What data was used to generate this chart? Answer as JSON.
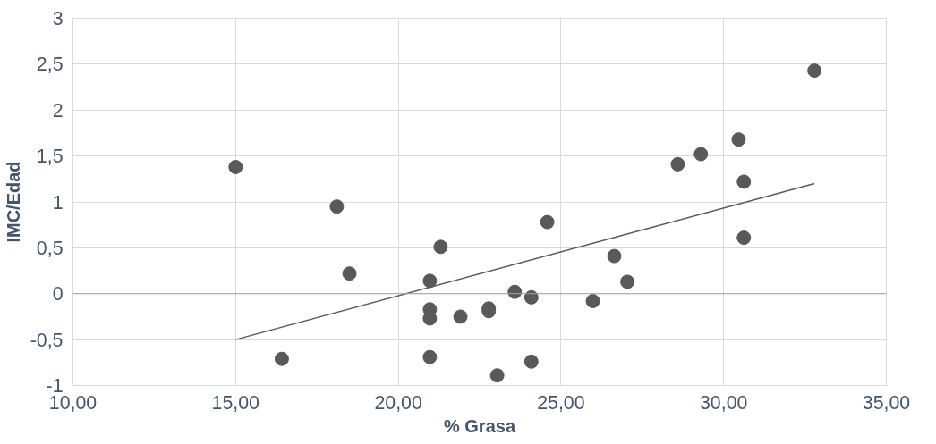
{
  "chart_data": {
    "type": "scatter",
    "xlabel": "% Grasa",
    "ylabel": "IMC/Edad",
    "xlim": [
      10,
      35
    ],
    "ylim": [
      -1,
      3
    ],
    "xticks": [
      {
        "value": 10,
        "label": "10,00"
      },
      {
        "value": 15,
        "label": "15,00"
      },
      {
        "value": 20,
        "label": "20,00"
      },
      {
        "value": 25,
        "label": "25,00"
      },
      {
        "value": 30,
        "label": "30,00"
      },
      {
        "value": 35,
        "label": "35,00"
      }
    ],
    "yticks": [
      -1,
      {
        "value": -0.5,
        "label": "-0,5"
      },
      0,
      {
        "value": 0.5,
        "label": "0,5"
      },
      1,
      {
        "value": 1.5,
        "label": "1,5"
      },
      2,
      {
        "value": 2.5,
        "label": "2,5"
      },
      3
    ],
    "grid": true,
    "series": [
      {
        "marker": "circle",
        "color": "#595959",
        "x": [
          15.0,
          18.11,
          18.5,
          21.3,
          20.97,
          20.97,
          20.97,
          21.91,
          22.78,
          22.78,
          20.97,
          16.42,
          23.04,
          23.58,
          24.09,
          24.09,
          24.58,
          25.98,
          26.64,
          27.04,
          28.59,
          29.3,
          30.46,
          30.62,
          30.62,
          32.79
        ],
        "values": [
          1.38,
          0.95,
          0.22,
          0.51,
          0.14,
          -0.17,
          -0.27,
          -0.25,
          -0.16,
          -0.19,
          -0.69,
          -0.71,
          -0.89,
          0.02,
          -0.04,
          -0.74,
          0.78,
          -0.08,
          0.41,
          0.13,
          1.41,
          1.52,
          1.68,
          1.22,
          0.61,
          2.43
        ]
      },
      {
        "type": "line",
        "color": "#595959",
        "x": [
          15.0,
          32.79
        ],
        "values": [
          -0.5,
          1.2
        ],
        "line_style": "solid"
      }
    ]
  }
}
